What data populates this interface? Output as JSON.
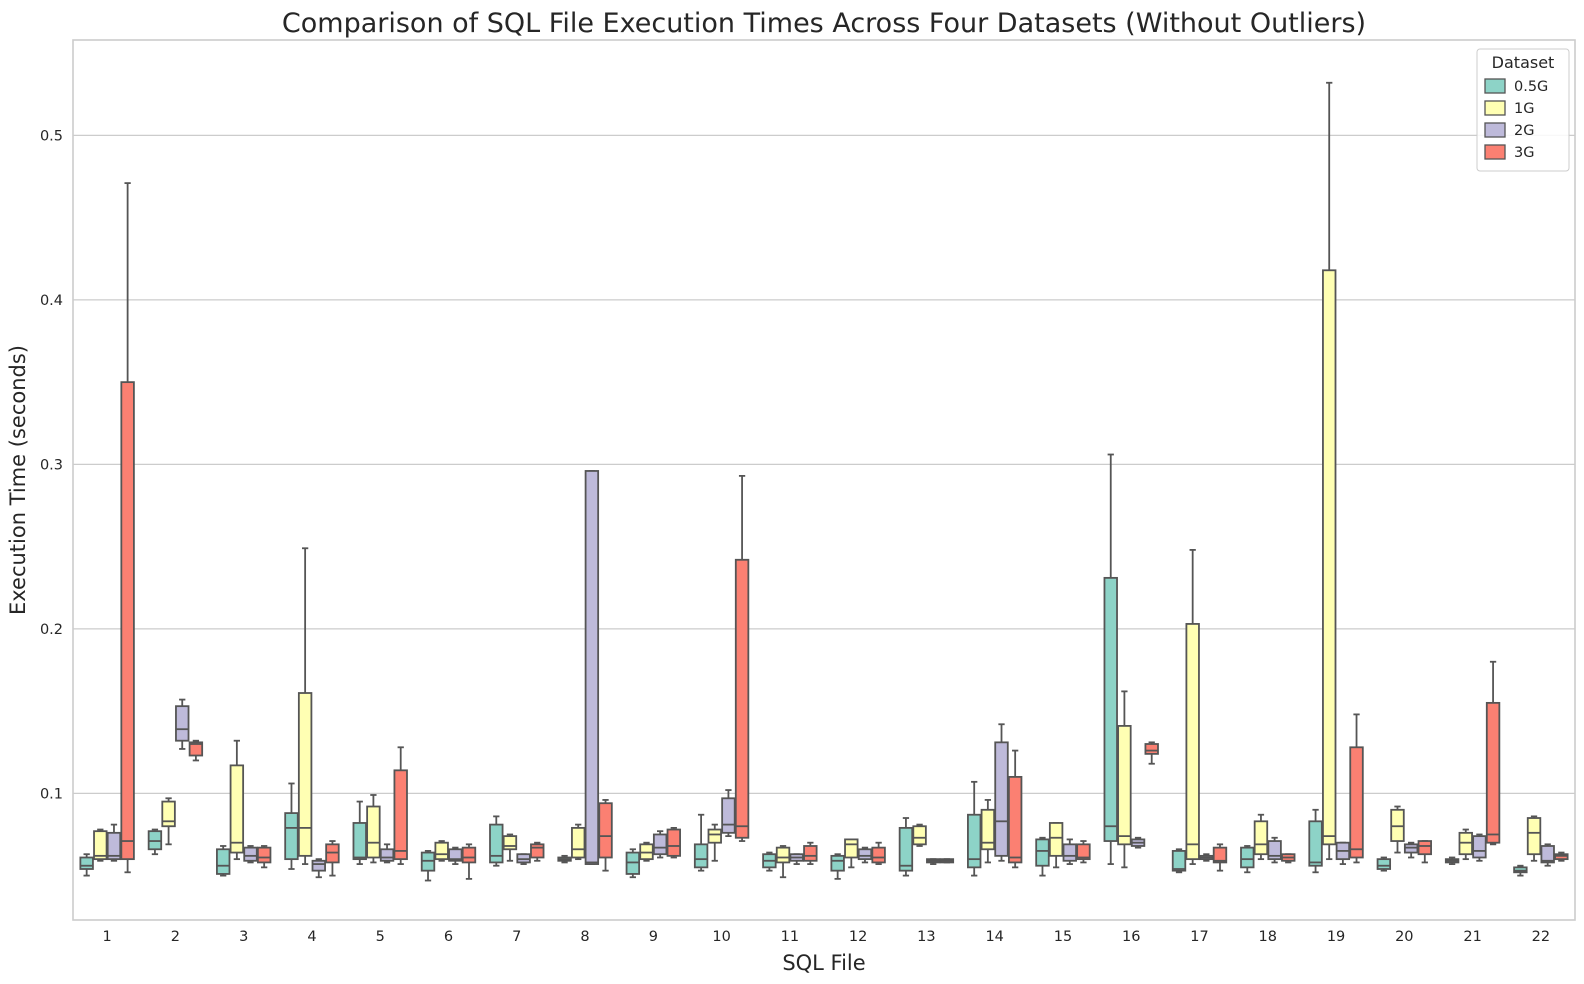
{
  "chart_data": {
    "type": "box",
    "title": "Comparison of SQL File Execution Times Across Four Datasets (Without Outliers)",
    "xlabel": "SQL File",
    "ylabel": "Execution Time (seconds)",
    "ylim": [
      0.023,
      0.558
    ],
    "yticks": [
      0.1,
      0.2,
      0.3,
      0.4,
      0.5
    ],
    "ytick_labels": [
      "0.1",
      "0.2",
      "0.3",
      "0.4",
      "0.5"
    ],
    "grid": "horizontal",
    "legend": {
      "title": "Dataset",
      "position": "top-right"
    },
    "categories": [
      "1",
      "2",
      "3",
      "4",
      "5",
      "6",
      "7",
      "8",
      "9",
      "10",
      "11",
      "12",
      "13",
      "14",
      "15",
      "16",
      "17",
      "18",
      "19",
      "20",
      "21",
      "22"
    ],
    "series": [
      {
        "name": "0.5G",
        "color": "#8dd3c7",
        "boxes": [
          [
            0.05,
            0.054,
            0.056,
            0.061,
            0.063
          ],
          [
            0.063,
            0.066,
            0.071,
            0.077,
            0.078
          ],
          [
            0.05,
            0.051,
            0.056,
            0.066,
            0.068
          ],
          [
            0.054,
            0.06,
            0.079,
            0.088,
            0.106
          ],
          [
            0.057,
            0.06,
            0.061,
            0.082,
            0.095
          ],
          [
            0.047,
            0.053,
            0.059,
            0.064,
            0.065
          ],
          [
            0.056,
            0.058,
            0.062,
            0.081,
            0.086
          ],
          [
            0.058,
            0.059,
            0.06,
            0.061,
            0.062
          ],
          [
            0.049,
            0.051,
            0.058,
            0.064,
            0.066
          ],
          [
            0.053,
            0.055,
            0.06,
            0.069,
            0.087
          ],
          [
            0.053,
            0.055,
            0.059,
            0.063,
            0.064
          ],
          [
            0.048,
            0.053,
            0.059,
            0.062,
            0.063
          ],
          [
            0.05,
            0.053,
            0.056,
            0.079,
            0.085
          ],
          [
            0.05,
            0.055,
            0.06,
            0.087,
            0.107
          ],
          [
            0.05,
            0.056,
            0.065,
            0.072,
            0.073
          ],
          [
            0.057,
            0.071,
            0.08,
            0.231,
            0.306
          ],
          [
            0.052,
            0.053,
            0.054,
            0.065,
            0.066
          ],
          [
            0.052,
            0.055,
            0.06,
            0.067,
            0.068
          ],
          [
            0.052,
            0.056,
            0.058,
            0.083,
            0.09
          ],
          [
            0.053,
            0.054,
            0.056,
            0.06,
            0.061
          ],
          [
            0.057,
            0.058,
            0.059,
            0.06,
            0.061
          ],
          [
            0.05,
            0.052,
            0.053,
            0.055,
            0.056
          ]
        ]
      },
      {
        "name": "1G",
        "color": "#ffffb3",
        "boxes": [
          [
            0.059,
            0.06,
            0.062,
            0.077,
            0.078
          ],
          [
            0.069,
            0.08,
            0.083,
            0.095,
            0.097
          ],
          [
            0.06,
            0.064,
            0.07,
            0.117,
            0.132
          ],
          [
            0.057,
            0.062,
            0.079,
            0.161,
            0.249
          ],
          [
            0.058,
            0.061,
            0.07,
            0.092,
            0.099
          ],
          [
            0.059,
            0.06,
            0.063,
            0.07,
            0.071
          ],
          [
            0.059,
            0.066,
            0.068,
            0.074,
            0.075
          ],
          [
            0.06,
            0.061,
            0.066,
            0.079,
            0.081
          ],
          [
            0.059,
            0.06,
            0.064,
            0.069,
            0.07
          ],
          [
            0.059,
            0.07,
            0.075,
            0.078,
            0.081
          ],
          [
            0.049,
            0.058,
            0.061,
            0.067,
            0.068
          ],
          [
            0.055,
            0.061,
            0.069,
            0.072,
            0.072
          ],
          [
            0.068,
            0.069,
            0.073,
            0.08,
            0.081
          ],
          [
            0.058,
            0.066,
            0.07,
            0.09,
            0.096
          ],
          [
            0.055,
            0.062,
            0.073,
            0.082,
            0.082
          ],
          [
            0.055,
            0.069,
            0.074,
            0.141,
            0.162
          ],
          [
            0.057,
            0.06,
            0.069,
            0.203,
            0.248
          ],
          [
            0.06,
            0.063,
            0.069,
            0.083,
            0.087
          ],
          [
            0.06,
            0.069,
            0.074,
            0.418,
            0.532
          ],
          [
            0.064,
            0.071,
            0.08,
            0.09,
            0.092
          ],
          [
            0.06,
            0.063,
            0.07,
            0.076,
            0.078
          ],
          [
            0.059,
            0.063,
            0.076,
            0.085,
            0.086
          ]
        ]
      },
      {
        "name": "2G",
        "color": "#bebada",
        "boxes": [
          [
            0.059,
            0.06,
            0.062,
            0.076,
            0.081
          ],
          [
            0.127,
            0.132,
            0.139,
            0.153,
            0.157
          ],
          [
            0.058,
            0.059,
            0.062,
            0.067,
            0.068
          ],
          [
            0.049,
            0.053,
            0.057,
            0.059,
            0.06
          ],
          [
            0.058,
            0.059,
            0.061,
            0.066,
            0.069
          ],
          [
            0.057,
            0.059,
            0.06,
            0.066,
            0.067
          ],
          [
            0.057,
            0.058,
            0.06,
            0.063,
            0.063
          ],
          [
            0.057,
            0.057,
            0.058,
            0.296,
            0.296
          ],
          [
            0.061,
            0.063,
            0.067,
            0.075,
            0.077
          ],
          [
            0.074,
            0.076,
            0.081,
            0.097,
            0.102
          ],
          [
            0.057,
            0.059,
            0.061,
            0.063,
            0.063
          ],
          [
            0.058,
            0.06,
            0.062,
            0.066,
            0.067
          ],
          [
            0.057,
            0.058,
            0.059,
            0.06,
            0.06
          ],
          [
            0.059,
            0.062,
            0.083,
            0.131,
            0.142
          ],
          [
            0.057,
            0.059,
            0.062,
            0.069,
            0.072
          ],
          [
            0.067,
            0.068,
            0.07,
            0.072,
            0.073
          ],
          [
            0.059,
            0.06,
            0.061,
            0.062,
            0.063
          ],
          [
            0.058,
            0.06,
            0.062,
            0.071,
            0.073
          ],
          [
            0.057,
            0.06,
            0.065,
            0.07,
            0.07
          ],
          [
            0.061,
            0.064,
            0.067,
            0.069,
            0.07
          ],
          [
            0.059,
            0.061,
            0.065,
            0.074,
            0.075
          ],
          [
            0.056,
            0.058,
            0.059,
            0.068,
            0.069
          ]
        ]
      },
      {
        "name": "3G",
        "color": "#fb8072",
        "boxes": [
          [
            0.052,
            0.06,
            0.071,
            0.35,
            0.471
          ],
          [
            0.12,
            0.123,
            0.13,
            0.131,
            0.132
          ],
          [
            0.055,
            0.058,
            0.061,
            0.067,
            0.068
          ],
          [
            0.05,
            0.058,
            0.064,
            0.069,
            0.071
          ],
          [
            0.057,
            0.06,
            0.065,
            0.114,
            0.128
          ],
          [
            0.048,
            0.058,
            0.061,
            0.067,
            0.069
          ],
          [
            0.059,
            0.061,
            0.067,
            0.069,
            0.07
          ],
          [
            0.053,
            0.061,
            0.074,
            0.094,
            0.096
          ],
          [
            0.061,
            0.062,
            0.068,
            0.078,
            0.079
          ],
          [
            0.071,
            0.073,
            0.08,
            0.242,
            0.293
          ],
          [
            0.057,
            0.059,
            0.062,
            0.068,
            0.07
          ],
          [
            0.057,
            0.058,
            0.061,
            0.067,
            0.07
          ],
          [
            0.058,
            0.058,
            0.059,
            0.06,
            0.06
          ],
          [
            0.055,
            0.058,
            0.061,
            0.11,
            0.126
          ],
          [
            0.058,
            0.06,
            0.061,
            0.069,
            0.071
          ],
          [
            0.118,
            0.124,
            0.126,
            0.13,
            0.131
          ],
          [
            0.053,
            0.058,
            0.059,
            0.067,
            0.069
          ],
          [
            0.058,
            0.059,
            0.061,
            0.063,
            0.063
          ],
          [
            0.058,
            0.061,
            0.066,
            0.128,
            0.148
          ],
          [
            0.058,
            0.063,
            0.068,
            0.071,
            0.071
          ],
          [
            0.069,
            0.07,
            0.075,
            0.155,
            0.18
          ],
          [
            0.059,
            0.06,
            0.062,
            0.063,
            0.064
          ]
        ]
      }
    ]
  }
}
